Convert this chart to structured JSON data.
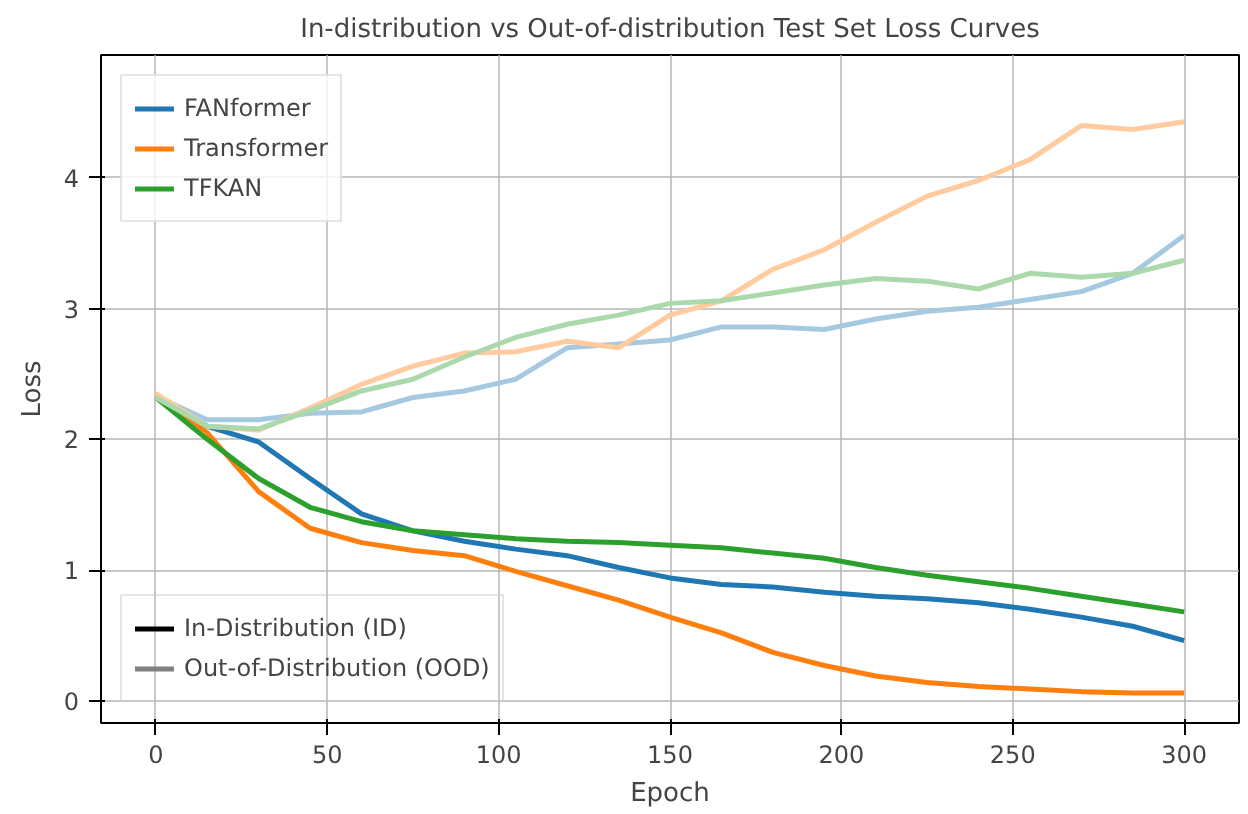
{
  "chart_data": {
    "type": "line",
    "title": "In-distribution vs Out-of-distribution Test Set Loss Curves",
    "xlabel": "Epoch",
    "ylabel": "Loss",
    "x": [
      0,
      15,
      30,
      45,
      60,
      75,
      90,
      105,
      120,
      135,
      150,
      165,
      180,
      195,
      210,
      225,
      240,
      255,
      270,
      285,
      300
    ],
    "series": [
      {
        "name": "FANformer",
        "color": "#1f77b4",
        "values": [
          2.33,
          2.1,
          1.98,
          1.7,
          1.43,
          1.3,
          1.22,
          1.16,
          1.11,
          1.02,
          0.94,
          0.89,
          0.87,
          0.83,
          0.8,
          0.78,
          0.75,
          0.7,
          0.64,
          0.57,
          0.46
        ]
      },
      {
        "name": "Transformer",
        "color": "#ff7f0e",
        "values": [
          2.35,
          2.05,
          1.6,
          1.32,
          1.21,
          1.15,
          1.11,
          0.99,
          0.88,
          0.77,
          0.64,
          0.52,
          0.37,
          0.27,
          0.19,
          0.14,
          0.11,
          0.09,
          0.07,
          0.06,
          0.06
        ]
      },
      {
        "name": "TFKAN",
        "color": "#2ca02c",
        "values": [
          2.32,
          2.0,
          1.7,
          1.48,
          1.37,
          1.3,
          1.27,
          1.24,
          1.22,
          1.21,
          1.19,
          1.17,
          1.13,
          1.09,
          1.02,
          0.96,
          0.91,
          0.86,
          0.8,
          0.74,
          0.68
        ]
      },
      {
        "color": "#a5c9e1",
        "values": [
          2.33,
          2.15,
          2.15,
          2.2,
          2.21,
          2.32,
          2.37,
          2.46,
          2.7,
          2.73,
          2.76,
          2.86,
          2.86,
          2.84,
          2.92,
          2.98,
          3.01,
          3.07,
          3.13,
          3.27,
          3.56
        ]
      },
      {
        "color": "#ffcb9f",
        "values": [
          2.35,
          2.1,
          2.07,
          2.24,
          2.42,
          2.56,
          2.66,
          2.67,
          2.75,
          2.7,
          2.95,
          3.06,
          3.3,
          3.45,
          3.66,
          3.86,
          3.98,
          4.14,
          4.4,
          4.37,
          4.43
        ]
      },
      {
        "color": "#abd9ab",
        "values": [
          2.32,
          2.1,
          2.08,
          2.22,
          2.37,
          2.46,
          2.63,
          2.78,
          2.88,
          2.95,
          3.04,
          3.06,
          3.12,
          3.18,
          3.23,
          3.21,
          3.15,
          3.27,
          3.24,
          3.27,
          3.37
        ]
      }
    ],
    "annotations": [
      "In-Distribution (ID)",
      "Out-of-Distribution (OOD)"
    ],
    "xlim": [
      -16,
      316
    ],
    "ylim": [
      -0.17,
      4.94
    ],
    "xticks": [
      0,
      50,
      100,
      150,
      200,
      250,
      300
    ],
    "yticks": [
      0,
      1,
      2,
      3,
      4
    ],
    "grid": true,
    "legend": "top left",
    "line_style": "solid"
  }
}
